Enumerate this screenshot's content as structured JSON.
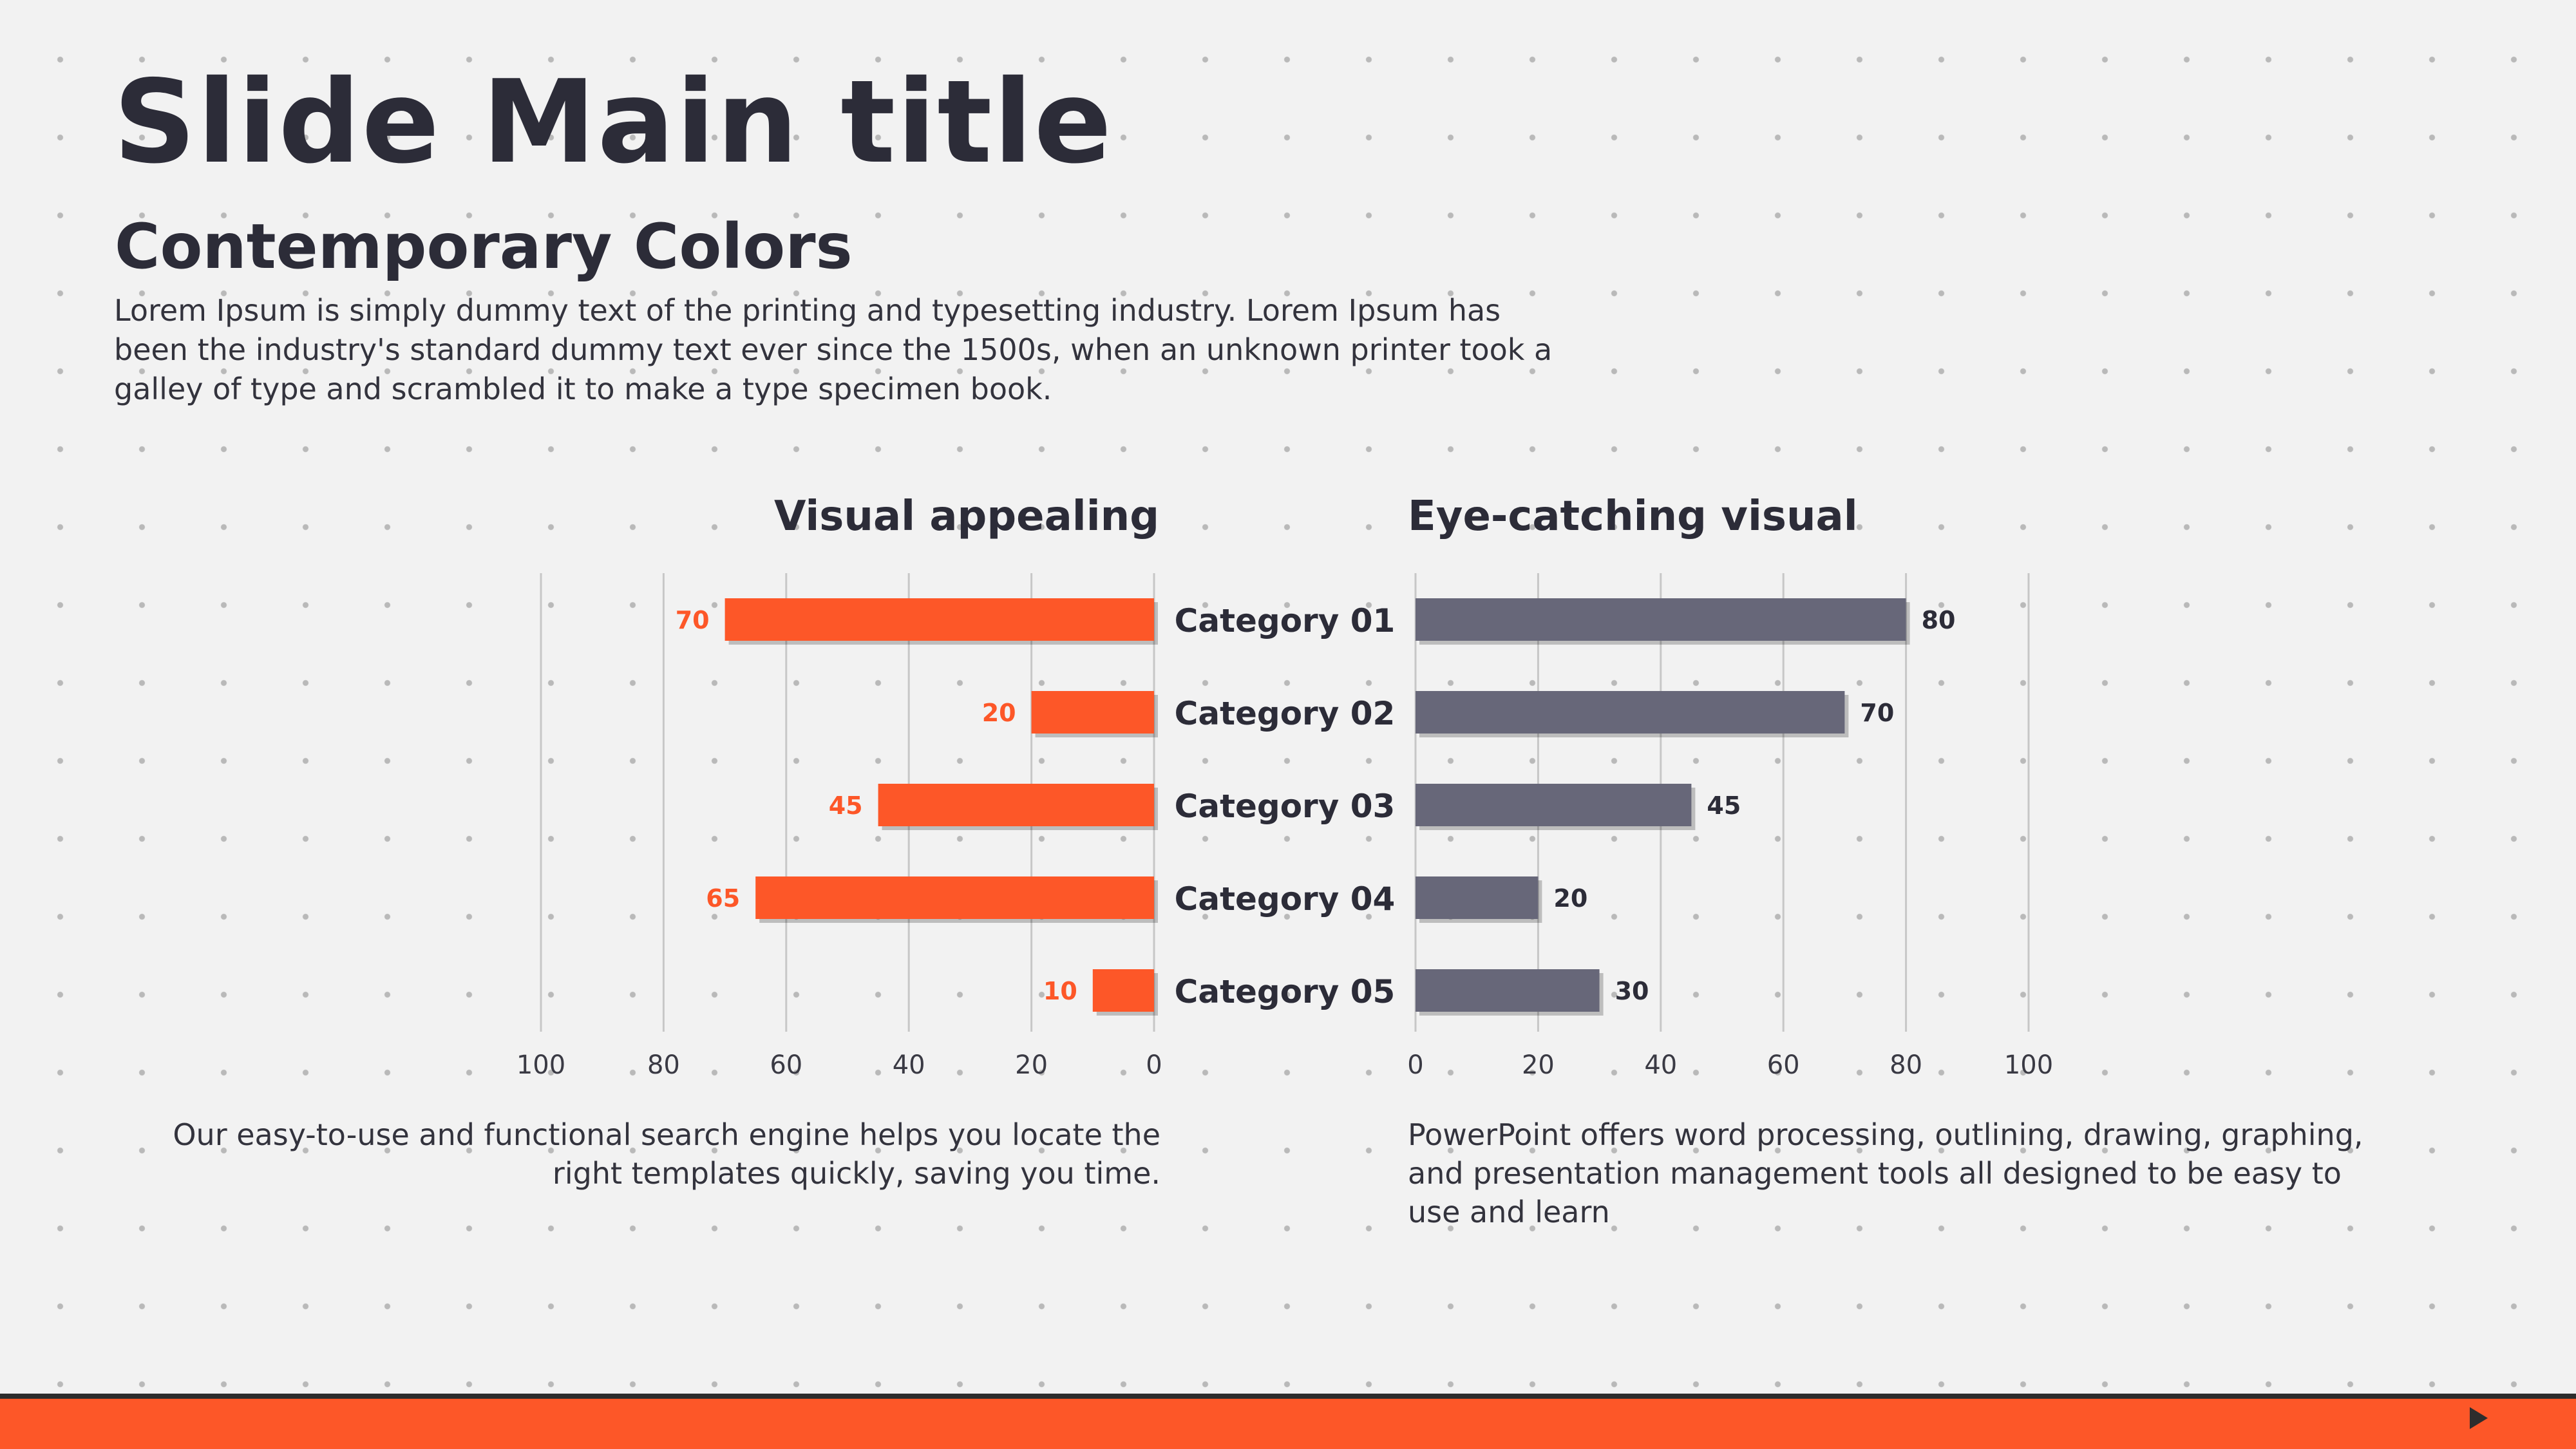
{
  "slide": {
    "main_title": "Slide Main title",
    "subtitle": "Contemporary Colors",
    "intro": "Lorem Ipsum is simply dummy text of the printing and typesetting industry. Lorem Ipsum has been the industry's standard dummy text ever since the 1500s, when an unknown printer took a galley of type and scrambled it to make a type specimen book.",
    "caption_left": "Our easy-to-use and functional search engine helps you locate the right templates quickly, saving you time.",
    "caption_right": "PowerPoint offers word processing, outlining, drawing, graphing, and presentation management tools all designed to be easy to use and learn",
    "footer_icon": "play-icon"
  },
  "colors": {
    "accent_orange": "#fd5728",
    "slate": "#676779",
    "text_dark": "#2c2c38",
    "footer_bar": "#fd5728"
  },
  "chart_data": [
    {
      "type": "bar",
      "orientation": "horizontal",
      "x_direction": "reversed",
      "title": "Visual appealing",
      "categories": [
        "Category 01",
        "Category 02",
        "Category 03",
        "Category 04",
        "Category 05"
      ],
      "values": [
        70,
        20,
        45,
        65,
        10
      ],
      "xlim": [
        0,
        100
      ],
      "ticks": [
        0,
        20,
        40,
        60,
        80,
        100
      ],
      "grid": true,
      "data_labels": true,
      "color": "#fd5728"
    },
    {
      "type": "bar",
      "orientation": "horizontal",
      "title": "Eye-catching visual",
      "categories": [
        "Category 01",
        "Category 02",
        "Category 03",
        "Category 04",
        "Category 05"
      ],
      "values": [
        80,
        70,
        45,
        20,
        30
      ],
      "xlim": [
        0,
        100
      ],
      "ticks": [
        0,
        20,
        40,
        60,
        80,
        100
      ],
      "grid": true,
      "data_labels": true,
      "color": "#676779"
    }
  ]
}
